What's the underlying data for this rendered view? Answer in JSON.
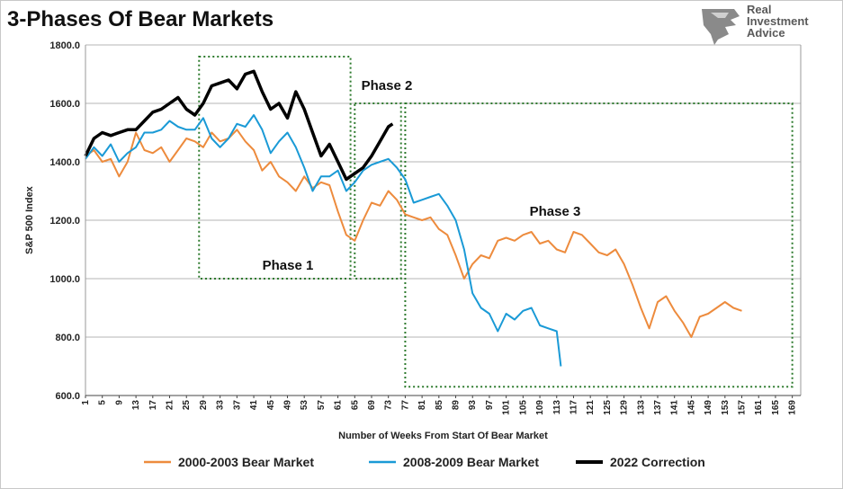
{
  "title": "3-Phases Of Bear Markets",
  "logo": {
    "line1": "Real",
    "line2": "Investment",
    "line3": "Advice",
    "icon": "eagle-head-icon"
  },
  "chart_data": {
    "type": "line",
    "title": "3-Phases Of Bear Markets",
    "xlabel": "Number of Weeks From Start Of Bear Market",
    "ylabel": "S&P 500 Index",
    "ylim": [
      600,
      1800
    ],
    "xlim": [
      1,
      171
    ],
    "grid": true,
    "legend_position": "bottom",
    "y_ticks": [
      "600.0",
      "800.0",
      "1000.0",
      "1200.0",
      "1400.0",
      "1600.0",
      "1800.0"
    ],
    "x_ticks": [
      "1",
      "5",
      "9",
      "13",
      "17",
      "21",
      "25",
      "29",
      "33",
      "37",
      "41",
      "45",
      "49",
      "53",
      "57",
      "61",
      "65",
      "69",
      "73",
      "77",
      "81",
      "85",
      "89",
      "93",
      "97",
      "101",
      "105",
      "109",
      "113",
      "117",
      "121",
      "125",
      "129",
      "133",
      "137",
      "141",
      "145",
      "149",
      "153",
      "157",
      "161",
      "165",
      "169"
    ],
    "phases": [
      {
        "label": "Phase 1",
        "x": [
          28,
          64
        ],
        "y": [
          1000,
          1760
        ]
      },
      {
        "label": "Phase 2",
        "x": [
          65,
          76
        ],
        "y": [
          1000,
          1600
        ]
      },
      {
        "label": "Phase 3",
        "x": [
          77,
          169
        ],
        "y": [
          630,
          1600
        ]
      }
    ],
    "series": [
      {
        "name": "2000-2003 Bear Market",
        "color": "#ed8b3d",
        "x": [
          1,
          3,
          5,
          7,
          9,
          11,
          13,
          15,
          17,
          19,
          21,
          23,
          25,
          27,
          29,
          31,
          33,
          35,
          37,
          39,
          41,
          43,
          45,
          47,
          49,
          51,
          53,
          55,
          57,
          59,
          61,
          63,
          65,
          67,
          69,
          71,
          73,
          75,
          77,
          79,
          81,
          83,
          85,
          87,
          89,
          91,
          93,
          95,
          97,
          99,
          101,
          103,
          105,
          107,
          109,
          111,
          113,
          115,
          117,
          119,
          121,
          123,
          125,
          127,
          129,
          131,
          133,
          135,
          137,
          139,
          141,
          143,
          145,
          147,
          149,
          151,
          153,
          155,
          157
        ],
        "values": [
          1420,
          1440,
          1400,
          1410,
          1350,
          1400,
          1500,
          1440,
          1430,
          1450,
          1400,
          1440,
          1480,
          1470,
          1450,
          1500,
          1470,
          1480,
          1510,
          1470,
          1440,
          1370,
          1400,
          1350,
          1330,
          1300,
          1350,
          1310,
          1330,
          1320,
          1230,
          1150,
          1130,
          1200,
          1260,
          1250,
          1300,
          1270,
          1220,
          1210,
          1200,
          1210,
          1170,
          1150,
          1080,
          1000,
          1050,
          1080,
          1070,
          1130,
          1140,
          1130,
          1150,
          1160,
          1120,
          1130,
          1100,
          1090,
          1160,
          1150,
          1120,
          1090,
          1080,
          1100,
          1050,
          980,
          900,
          830,
          920,
          940,
          890,
          850,
          800,
          870,
          880,
          900,
          920,
          900,
          890
        ]
      },
      {
        "name": "2008-2009 Bear Market",
        "color": "#1a9ad6",
        "x": [
          1,
          3,
          5,
          7,
          9,
          11,
          13,
          15,
          17,
          19,
          21,
          23,
          25,
          27,
          29,
          31,
          33,
          35,
          37,
          39,
          41,
          43,
          45,
          47,
          49,
          51,
          53,
          55,
          57,
          59,
          61,
          63,
          65,
          67,
          69,
          71,
          73,
          75,
          77,
          79,
          81,
          83,
          85,
          87,
          89,
          91,
          93,
          95,
          97,
          99,
          101,
          103,
          105,
          107,
          109,
          111,
          113,
          114
        ],
        "values": [
          1410,
          1450,
          1420,
          1460,
          1400,
          1430,
          1450,
          1500,
          1500,
          1510,
          1540,
          1520,
          1510,
          1510,
          1550,
          1480,
          1450,
          1480,
          1530,
          1520,
          1560,
          1510,
          1430,
          1470,
          1500,
          1450,
          1380,
          1300,
          1350,
          1350,
          1370,
          1300,
          1330,
          1370,
          1390,
          1400,
          1410,
          1380,
          1340,
          1260,
          1270,
          1280,
          1290,
          1250,
          1200,
          1100,
          950,
          900,
          880,
          820,
          880,
          860,
          890,
          900,
          840,
          830,
          820,
          700
        ]
      },
      {
        "name": "2022 Correction",
        "color": "#000000",
        "x": [
          1,
          3,
          5,
          7,
          9,
          11,
          13,
          15,
          17,
          19,
          21,
          23,
          25,
          27,
          29,
          31,
          33,
          35,
          37,
          39,
          41,
          43,
          45,
          47,
          49,
          51,
          53,
          55,
          57,
          59,
          61,
          63,
          65,
          67,
          69,
          71,
          73,
          74
        ],
        "values": [
          1420,
          1480,
          1500,
          1490,
          1500,
          1510,
          1510,
          1540,
          1570,
          1580,
          1600,
          1620,
          1580,
          1560,
          1600,
          1660,
          1670,
          1680,
          1650,
          1700,
          1710,
          1640,
          1580,
          1600,
          1550,
          1640,
          1580,
          1500,
          1420,
          1460,
          1400,
          1340,
          1360,
          1380,
          1420,
          1470,
          1520,
          1530
        ]
      }
    ]
  }
}
